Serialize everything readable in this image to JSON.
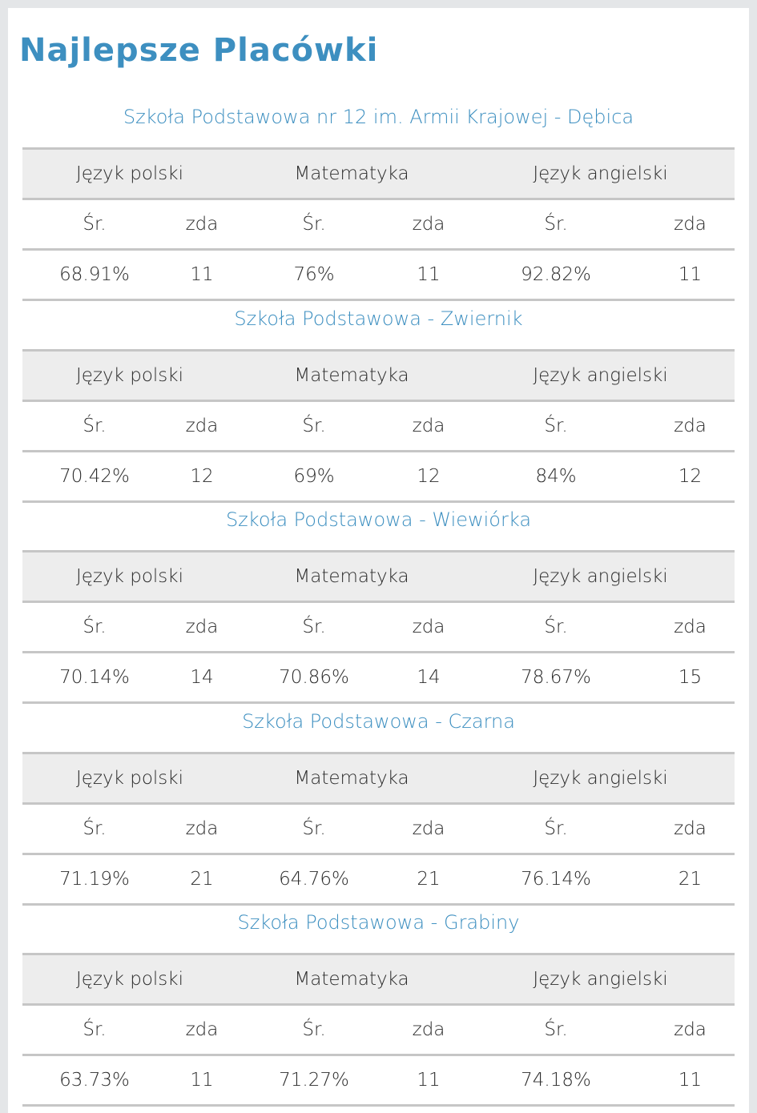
{
  "page_title": "Najlepsze Placówki",
  "subjects": [
    "Język polski",
    "Matematyka",
    "Język angielski"
  ],
  "sub_headers": {
    "avg": "Śr.",
    "count": "zda"
  },
  "colors": {
    "accent": "#3d8fc0",
    "header_bg": "#ededed",
    "border": "#c6c6c6"
  },
  "schools": [
    {
      "name": "Szkoła Podstawowa nr 12 im. Armii Krajowej - Dębica",
      "results": [
        [
          "68.91%",
          "11"
        ],
        [
          "76%",
          "11"
        ],
        [
          "92.82%",
          "11"
        ]
      ]
    },
    {
      "name": "Szkoła Podstawowa - Zwiernik",
      "results": [
        [
          "70.42%",
          "12"
        ],
        [
          "69%",
          "12"
        ],
        [
          "84%",
          "12"
        ]
      ]
    },
    {
      "name": "Szkoła Podstawowa - Wiewiórka",
      "results": [
        [
          "70.14%",
          "14"
        ],
        [
          "70.86%",
          "14"
        ],
        [
          "78.67%",
          "15"
        ]
      ]
    },
    {
      "name": "Szkoła Podstawowa - Czarna",
      "results": [
        [
          "71.19%",
          "21"
        ],
        [
          "64.76%",
          "21"
        ],
        [
          "76.14%",
          "21"
        ]
      ]
    },
    {
      "name": "Szkoła Podstawowa - Grabiny",
      "results": [
        [
          "63.73%",
          "11"
        ],
        [
          "71.27%",
          "11"
        ],
        [
          "74.18%",
          "11"
        ]
      ]
    }
  ]
}
